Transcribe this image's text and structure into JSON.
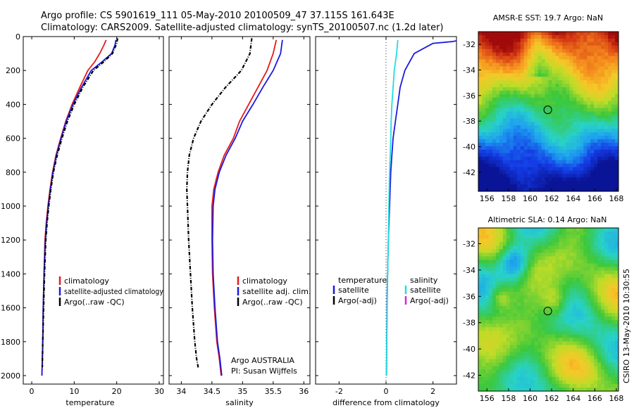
{
  "figure": {
    "title_line1": "Argo profile: CS 5901619_111 05-May-2010 20100509_47 37.115S 161.643E",
    "title_line2": "Climatology: CARS2009. Satellite-adjusted climatology: synTS_20100507.nc (1.2d later)",
    "side_label": "CSIRO 13-May-2010 10:30:55"
  },
  "colors": {
    "climatology": "#e41a1c",
    "satellite": "#1a1ae0",
    "argo": "#000000",
    "salinity_satellite": "#22dddd",
    "salinity_argo": "#e020e0"
  },
  "chart_data": [
    {
      "id": "temperature",
      "type": "line",
      "xlabel": "temperature",
      "ylabel": "",
      "xlim": [
        -2,
        31
      ],
      "ylim": [
        2050,
        0
      ],
      "xticks": [
        0,
        10,
        20,
        30
      ],
      "yticks": [
        0,
        200,
        400,
        600,
        800,
        1000,
        1200,
        1400,
        1600,
        1800,
        2000
      ],
      "legend": [
        "climatology",
        "satellite-adjusted climatology",
        "Argo(..raw -QC)"
      ],
      "series": [
        {
          "name": "climatology",
          "role": "climatology",
          "style": "solid",
          "x": [
            17.5,
            17.0,
            16.0,
            14.8,
            13.2,
            11.3,
            9.5,
            8.0,
            6.8,
            5.7,
            4.9,
            4.3,
            3.8,
            3.4,
            3.1,
            2.9,
            2.7,
            2.6,
            2.5,
            2.4
          ],
          "y": [
            20,
            50,
            100,
            150,
            200,
            300,
            400,
            500,
            600,
            700,
            800,
            900,
            1000,
            1100,
            1200,
            1400,
            1600,
            1800,
            1900,
            2000
          ]
        },
        {
          "name": "satellite-adjusted climatology",
          "role": "satellite",
          "style": "solid",
          "x": [
            19.8,
            19.6,
            18.8,
            16.5,
            14.0,
            11.7,
            9.7,
            8.1,
            6.9,
            5.8,
            5.0,
            4.4,
            3.9,
            3.5,
            3.2,
            2.9,
            2.7,
            2.6,
            2.5,
            2.4
          ],
          "y": [
            20,
            50,
            100,
            150,
            200,
            300,
            400,
            500,
            600,
            700,
            800,
            900,
            1000,
            1100,
            1200,
            1400,
            1600,
            1800,
            1900,
            2000
          ]
        },
        {
          "name": "Argo(..raw -QC)",
          "role": "argo",
          "style": "dotted",
          "x": [
            20.2,
            20.0,
            19.0,
            16.9,
            14.5,
            12.0,
            10.0,
            8.4,
            7.1,
            6.0,
            5.1,
            4.5,
            4.0,
            3.6,
            3.3,
            3.0,
            2.8,
            2.6,
            2.5
          ],
          "y": [
            10,
            40,
            100,
            150,
            200,
            300,
            400,
            500,
            600,
            700,
            800,
            900,
            1000,
            1100,
            1200,
            1400,
            1600,
            1800,
            1950
          ]
        }
      ]
    },
    {
      "id": "salinity",
      "type": "line",
      "xlabel": "salinity",
      "ylabel": "",
      "xlim": [
        33.8,
        36.1
      ],
      "ylim": [
        2050,
        0
      ],
      "xticks": [
        34,
        34.5,
        35,
        35.5,
        36
      ],
      "yticks": [
        0,
        200,
        400,
        600,
        800,
        1000,
        1200,
        1400,
        1600,
        1800,
        2000
      ],
      "legend": [
        "climatology",
        "satellite adj. clim.",
        "Argo(..raw -QC)"
      ],
      "annotation": [
        "Argo AUSTRALIA",
        "PI: Susan Wijffels"
      ],
      "series": [
        {
          "name": "climatology",
          "role": "climatology",
          "style": "solid",
          "x": [
            35.55,
            35.5,
            35.4,
            35.25,
            35.1,
            34.95,
            34.85,
            34.7,
            34.6,
            34.53,
            34.5,
            34.5,
            34.51,
            34.54,
            34.58,
            34.62,
            34.65
          ],
          "y": [
            20,
            100,
            200,
            300,
            400,
            500,
            600,
            700,
            800,
            900,
            1000,
            1200,
            1400,
            1600,
            1800,
            1900,
            2000
          ]
        },
        {
          "name": "satellite adj. clim.",
          "role": "satellite",
          "style": "solid",
          "x": [
            35.65,
            35.62,
            35.5,
            35.33,
            35.17,
            35.0,
            34.88,
            34.73,
            34.62,
            34.55,
            34.52,
            34.51,
            34.52,
            34.55,
            34.59,
            34.63,
            34.66
          ],
          "y": [
            20,
            100,
            200,
            300,
            400,
            500,
            600,
            700,
            800,
            900,
            1000,
            1200,
            1400,
            1600,
            1800,
            1900,
            2000
          ]
        },
        {
          "name": "Argo(..raw -QC)",
          "role": "argo",
          "style": "dotted",
          "x": [
            35.15,
            35.12,
            34.98,
            34.72,
            34.5,
            34.32,
            34.2,
            34.13,
            34.1,
            34.09,
            34.1,
            34.12,
            34.15,
            34.18,
            34.22,
            34.25,
            34.28
          ],
          "y": [
            10,
            100,
            200,
            300,
            400,
            500,
            600,
            700,
            800,
            900,
            1000,
            1200,
            1400,
            1600,
            1800,
            1900,
            1960
          ]
        }
      ]
    },
    {
      "id": "difference",
      "type": "line",
      "xlabel": "difference from climatology",
      "ylabel": "",
      "xlim": [
        -3,
        3
      ],
      "ylim": [
        2050,
        0
      ],
      "xticks": [
        -2,
        0,
        2
      ],
      "yticks": [
        0,
        200,
        400,
        600,
        800,
        1000,
        1200,
        1400,
        1600,
        1800,
        2000
      ],
      "legend_temperature_header": "temperature",
      "legend_temperature": [
        "satellite",
        "Argo(-adj)"
      ],
      "legend_salinity_header": "salinity",
      "legend_salinity": [
        "satellite",
        "Argo(-adj)"
      ],
      "series": [
        {
          "name": "satellite",
          "group": "temperature",
          "role": "satellite",
          "style": "solid",
          "x": [
            3.0,
            2.8,
            2.0,
            1.2,
            0.8,
            0.6,
            0.5,
            0.4,
            0.3,
            0.25,
            0.2,
            0.15,
            0.1,
            0.05,
            0.03,
            0.02
          ],
          "y": [
            25,
            30,
            40,
            100,
            200,
            300,
            400,
            500,
            600,
            700,
            800,
            1000,
            1200,
            1500,
            1800,
            2000
          ]
        },
        {
          "name": "satellite",
          "group": "salinity",
          "role": "salinity_satellite",
          "style": "solid",
          "x": [
            0.5,
            0.45,
            0.35,
            0.3,
            0.25,
            0.22,
            0.2,
            0.18,
            0.15,
            0.12,
            0.1,
            0.07,
            0.05,
            0.03,
            0.02
          ],
          "y": [
            20,
            100,
            200,
            300,
            400,
            500,
            600,
            700,
            800,
            1000,
            1200,
            1400,
            1600,
            1800,
            2000
          ]
        }
      ]
    }
  ],
  "maps": [
    {
      "id": "sst",
      "title": "AMSR-E SST: 19.7 Argo: NaN",
      "xticks": [
        "156",
        "158",
        "160",
        "162",
        "164",
        "166",
        "168"
      ],
      "yticks": [
        "-32",
        "-34",
        "-36",
        "-38",
        "-40",
        "-42"
      ],
      "xlim": [
        155.2,
        168.2
      ],
      "ylim": [
        -43.5,
        -31
      ],
      "marker": {
        "lon": 161.64,
        "lat": -37.12
      }
    },
    {
      "id": "sla",
      "title": "Altimetric SLA: 0.14 Argo: NaN",
      "xticks": [
        "156",
        "158",
        "160",
        "162",
        "164",
        "166",
        "168"
      ],
      "yticks": [
        "-32",
        "-34",
        "-36",
        "-38",
        "-40",
        "-42"
      ],
      "xlim": [
        155.2,
        168.2
      ],
      "ylim": [
        -43.2,
        -30.8
      ],
      "marker": {
        "lon": 161.64,
        "lat": -37.12
      }
    }
  ]
}
